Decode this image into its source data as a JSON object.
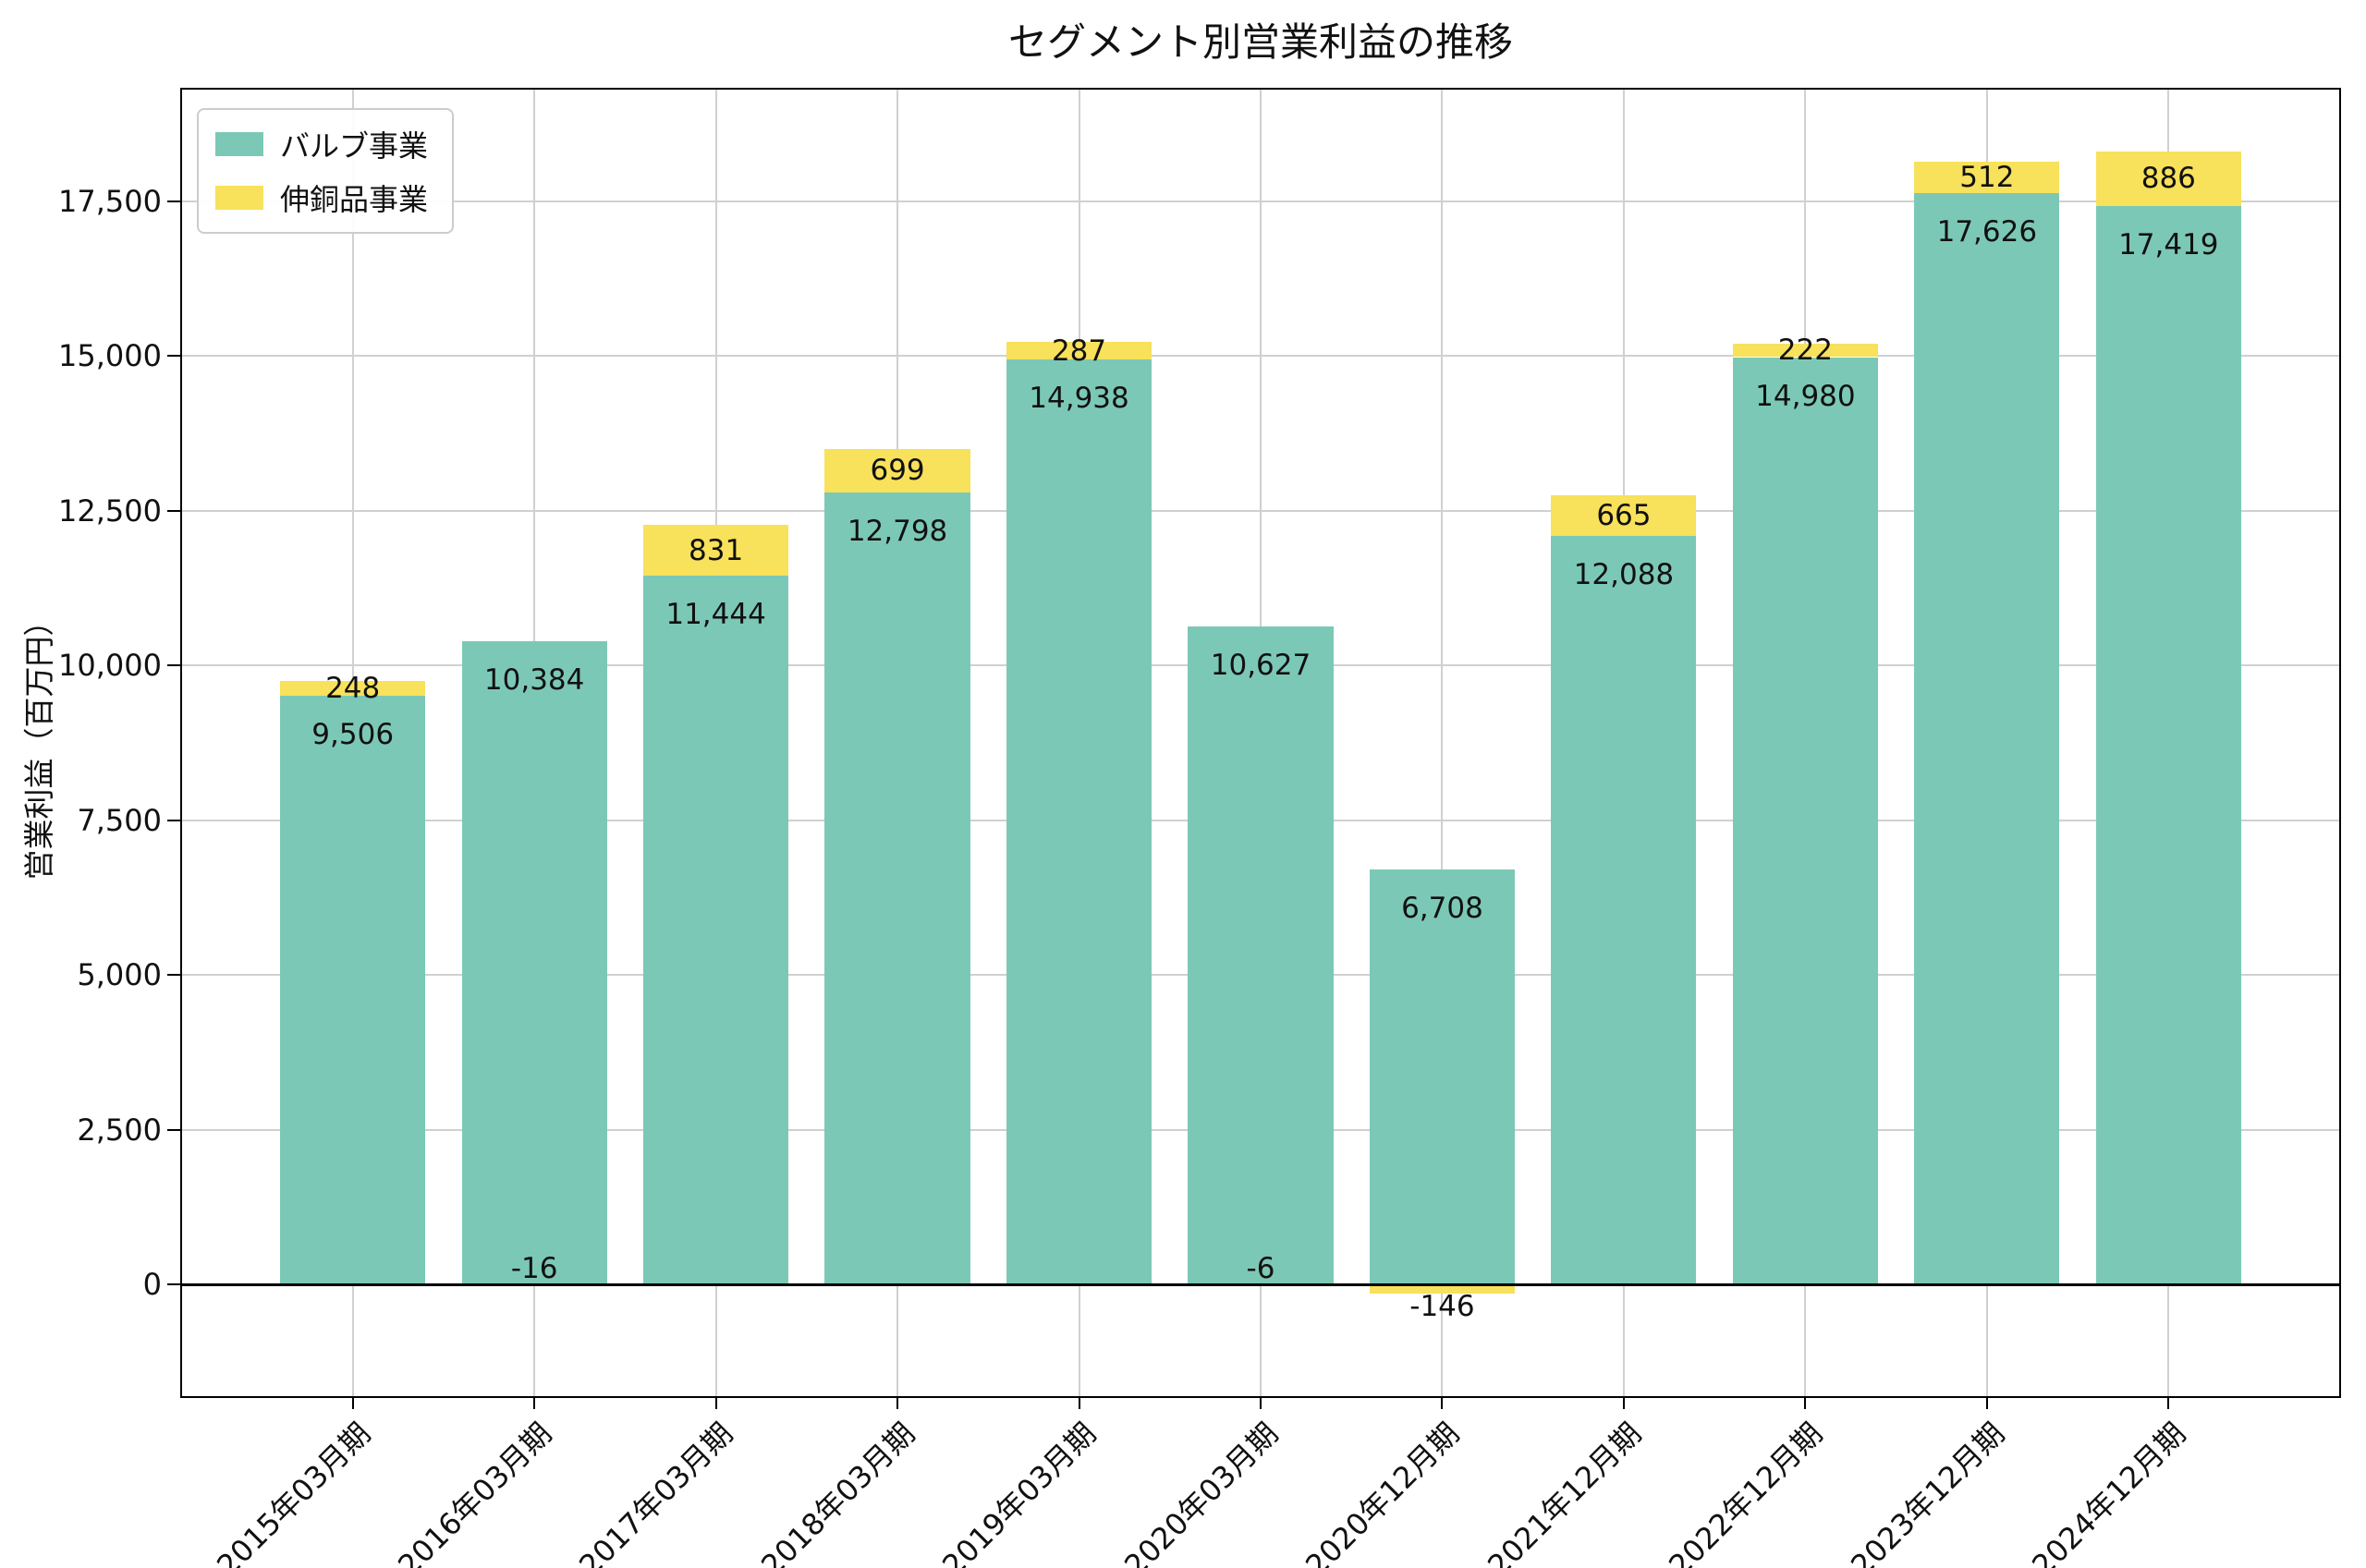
{
  "title": "セグメント別営業利益の推移",
  "ylabel": "営業利益（百万円）",
  "chart_data": {
    "type": "bar",
    "stacked": true,
    "title": "セグメント別営業利益の推移",
    "xlabel": "",
    "ylabel": "営業利益（百万円）",
    "categories": [
      "2015年03月期",
      "2016年03月期",
      "2017年03月期",
      "2018年03月期",
      "2019年03月期",
      "2020年03月期",
      "2020年12月期",
      "2021年12月期",
      "2022年12月期",
      "2023年12月期",
      "2024年12月期"
    ],
    "series": [
      {
        "name": "バルブ事業",
        "color": "#7cc8b6",
        "values": [
          9506,
          10384,
          11444,
          12798,
          14938,
          10627,
          6708,
          12088,
          14980,
          17626,
          17419
        ]
      },
      {
        "name": "伸銅品事業",
        "color": "#f8e15b",
        "values": [
          248,
          -16,
          831,
          699,
          287,
          -6,
          -146,
          665,
          222,
          512,
          886
        ]
      }
    ],
    "yticks": [
      0,
      2500,
      5000,
      7500,
      10000,
      12500,
      15000,
      17500
    ],
    "ylim": [
      -1800,
      19300
    ],
    "grid": true,
    "legend_position": "upper left"
  }
}
